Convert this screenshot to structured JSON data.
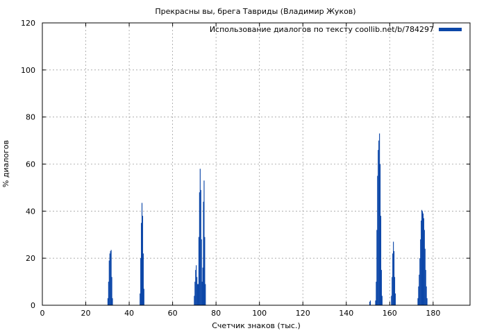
{
  "chart_data": {
    "type": "bar",
    "title": "Прекрасны вы, брега Тавриды (Владимир Жуков)",
    "xlabel": "Счетчик знаков (тыс.)",
    "ylabel": "% диалогов",
    "xlim": [
      0,
      197
    ],
    "ylim": [
      0,
      120
    ],
    "x_ticks": [
      0,
      20,
      40,
      60,
      80,
      100,
      120,
      140,
      160,
      180
    ],
    "y_ticks": [
      0,
      20,
      40,
      60,
      80,
      100,
      120
    ],
    "grid": true,
    "legend_position": "top-right",
    "colors": {
      "series": "#0d47a8"
    },
    "series": [
      {
        "name": "Использование диалогов по тексту coollib.net/b/784297",
        "points": [
          {
            "x": 30.2,
            "y": 3
          },
          {
            "x": 30.5,
            "y": 10
          },
          {
            "x": 30.8,
            "y": 19
          },
          {
            "x": 31.1,
            "y": 22
          },
          {
            "x": 31.4,
            "y": 23
          },
          {
            "x": 31.7,
            "y": 23.5
          },
          {
            "x": 32.0,
            "y": 12
          },
          {
            "x": 32.3,
            "y": 3
          },
          {
            "x": 45.0,
            "y": 5
          },
          {
            "x": 45.3,
            "y": 20
          },
          {
            "x": 45.6,
            "y": 35
          },
          {
            "x": 45.9,
            "y": 43.5
          },
          {
            "x": 46.2,
            "y": 38
          },
          {
            "x": 46.5,
            "y": 22
          },
          {
            "x": 46.8,
            "y": 7
          },
          {
            "x": 70.0,
            "y": 4
          },
          {
            "x": 70.3,
            "y": 10
          },
          {
            "x": 70.6,
            "y": 15
          },
          {
            "x": 70.9,
            "y": 17
          },
          {
            "x": 71.2,
            "y": 12
          },
          {
            "x": 71.5,
            "y": 9
          },
          {
            "x": 71.8,
            "y": 9
          },
          {
            "x": 72.1,
            "y": 29
          },
          {
            "x": 72.4,
            "y": 48
          },
          {
            "x": 72.7,
            "y": 58
          },
          {
            "x": 73.0,
            "y": 49
          },
          {
            "x": 73.3,
            "y": 28
          },
          {
            "x": 73.6,
            "y": 10
          },
          {
            "x": 73.9,
            "y": 16
          },
          {
            "x": 74.2,
            "y": 44
          },
          {
            "x": 74.5,
            "y": 53
          },
          {
            "x": 74.8,
            "y": 29
          },
          {
            "x": 75.1,
            "y": 9
          },
          {
            "x": 150.8,
            "y": 1.5
          },
          {
            "x": 151.1,
            "y": 2
          },
          {
            "x": 153.5,
            "y": 2
          },
          {
            "x": 153.8,
            "y": 10
          },
          {
            "x": 154.1,
            "y": 32
          },
          {
            "x": 154.4,
            "y": 55
          },
          {
            "x": 154.7,
            "y": 66
          },
          {
            "x": 155.0,
            "y": 70
          },
          {
            "x": 155.3,
            "y": 73
          },
          {
            "x": 155.6,
            "y": 60
          },
          {
            "x": 155.9,
            "y": 38
          },
          {
            "x": 156.2,
            "y": 15
          },
          {
            "x": 156.5,
            "y": 4
          },
          {
            "x": 160.8,
            "y": 4
          },
          {
            "x": 161.1,
            "y": 12
          },
          {
            "x": 161.4,
            "y": 22
          },
          {
            "x": 161.7,
            "y": 27
          },
          {
            "x": 162.0,
            "y": 23
          },
          {
            "x": 162.3,
            "y": 12
          },
          {
            "x": 162.6,
            "y": 5
          },
          {
            "x": 173.0,
            "y": 3
          },
          {
            "x": 173.3,
            "y": 8
          },
          {
            "x": 173.6,
            "y": 13
          },
          {
            "x": 173.9,
            "y": 20
          },
          {
            "x": 174.2,
            "y": 28
          },
          {
            "x": 174.5,
            "y": 36
          },
          {
            "x": 174.8,
            "y": 40.5
          },
          {
            "x": 175.1,
            "y": 40
          },
          {
            "x": 175.4,
            "y": 39
          },
          {
            "x": 175.7,
            "y": 37
          },
          {
            "x": 176.0,
            "y": 32
          },
          {
            "x": 176.3,
            "y": 24
          },
          {
            "x": 176.6,
            "y": 15
          },
          {
            "x": 176.9,
            "y": 8
          },
          {
            "x": 177.2,
            "y": 3
          }
        ]
      }
    ]
  }
}
